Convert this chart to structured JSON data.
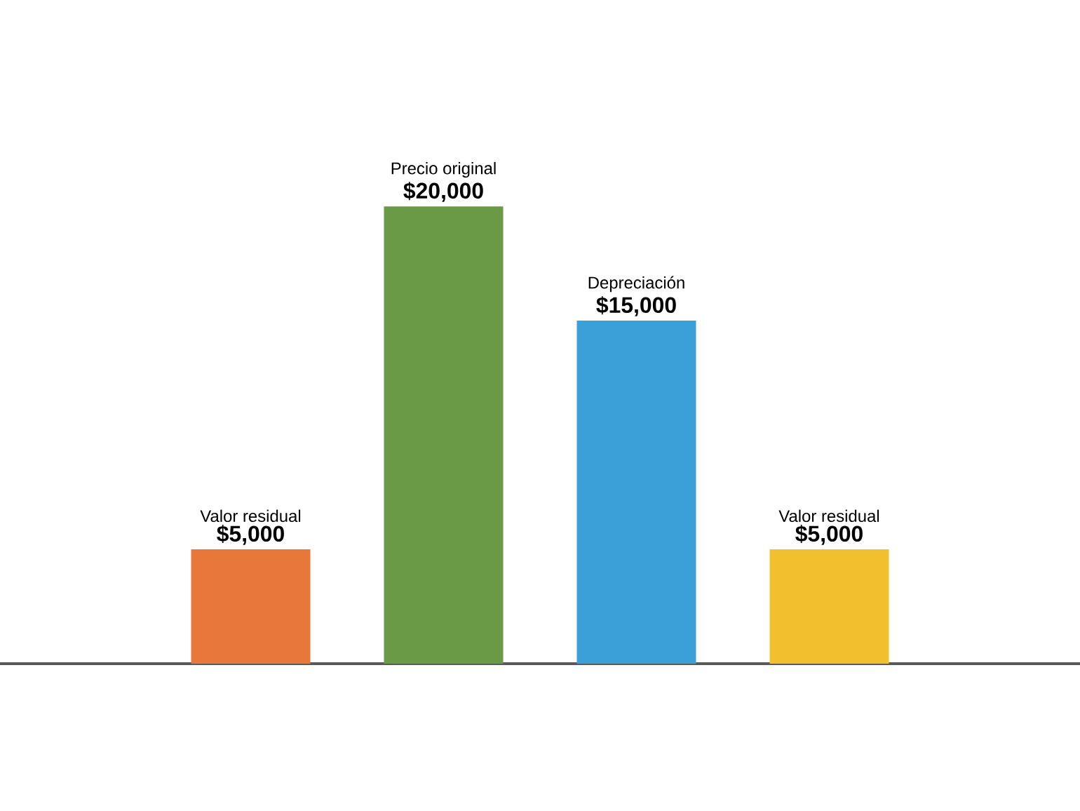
{
  "chart_data": {
    "type": "bar",
    "categories": [
      "Valor residual",
      "Precio original",
      "Depreciación",
      "Valor residual"
    ],
    "values": [
      5000,
      20000,
      15000,
      5000
    ],
    "colors": [
      "#e8773a",
      "#6a9a45",
      "#3b9fd8",
      "#f2bf2f"
    ],
    "value_labels": [
      "$5,000",
      "$20,000",
      "$15,000",
      "$5,000"
    ]
  }
}
